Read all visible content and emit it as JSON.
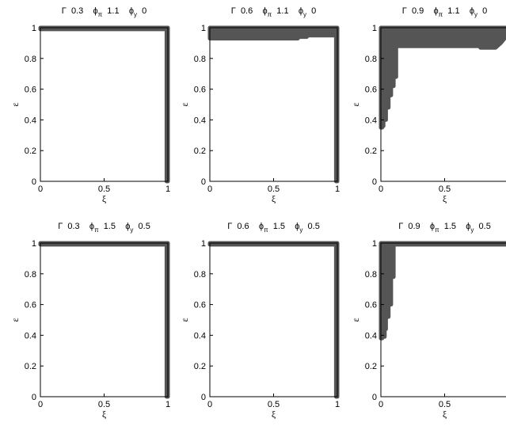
{
  "chart_data": [
    {
      "type": "area",
      "title": "Γ  0.3   ϕπ  1.1   ϕy  0",
      "xlabel": "ξ",
      "ylabel": "ε",
      "xlim": [
        0,
        1
      ],
      "ylim": [
        0,
        1
      ],
      "xticks": [
        "0",
        "0.5",
        "1"
      ],
      "yticks": [
        "0",
        "0.2",
        "0.4",
        "0.6",
        "0.8",
        "1"
      ],
      "grid": false,
      "params": {
        "Gamma": "0.3",
        "phi_pi": "1.1",
        "phi_y": "0"
      },
      "region_color": "#555555",
      "region": [
        [
          0,
          1
        ],
        [
          1,
          1
        ],
        [
          1,
          0
        ],
        [
          0.99,
          0
        ],
        [
          0.99,
          0.99
        ],
        [
          0,
          0.99
        ]
      ]
    },
    {
      "type": "area",
      "title": "Γ  0.6   ϕπ  1.1   ϕy  0",
      "xlabel": "ξ",
      "ylabel": "ε",
      "xlim": [
        0,
        1
      ],
      "ylim": [
        0,
        1
      ],
      "xticks": [
        "0",
        "0.5",
        "1"
      ],
      "yticks": [
        "0",
        "0.2",
        "0.4",
        "0.6",
        "0.8",
        "1"
      ],
      "grid": false,
      "params": {
        "Gamma": "0.6",
        "phi_pi": "1.1",
        "phi_y": "0"
      },
      "region_color": "#555555",
      "region": [
        [
          0,
          1
        ],
        [
          1,
          1
        ],
        [
          1,
          0
        ],
        [
          0.99,
          0
        ],
        [
          0.99,
          0.95
        ],
        [
          0.76,
          0.95
        ],
        [
          0.76,
          0.94
        ],
        [
          0.69,
          0.94
        ],
        [
          0.69,
          0.93
        ],
        [
          0,
          0.93
        ]
      ]
    },
    {
      "type": "area",
      "title": "Γ  0.9   ϕπ  1.1   ϕy  0",
      "xlabel": "ξ",
      "ylabel": "ε",
      "xlim": [
        0,
        1
      ],
      "ylim": [
        0,
        1
      ],
      "xticks": [
        "0",
        "0.5"
      ],
      "yticks": [
        "0",
        "0.2",
        "0.4",
        "0.6",
        "0.8",
        "1"
      ],
      "grid": false,
      "params": {
        "Gamma": "0.9",
        "phi_pi": "1.1",
        "phi_y": "0"
      },
      "region_color": "#555555",
      "region": [
        [
          0,
          1
        ],
        [
          1,
          1
        ],
        [
          1,
          0.96
        ],
        [
          0.94,
          0.9
        ],
        [
          0.9,
          0.87
        ],
        [
          0.78,
          0.87
        ],
        [
          0.78,
          0.88
        ],
        [
          0.12,
          0.88
        ],
        [
          0.12,
          0.68
        ],
        [
          0.1,
          0.68
        ],
        [
          0.1,
          0.62
        ],
        [
          0.08,
          0.62
        ],
        [
          0.08,
          0.56
        ],
        [
          0.06,
          0.56
        ],
        [
          0.06,
          0.48
        ],
        [
          0.04,
          0.48
        ],
        [
          0.04,
          0.4
        ],
        [
          0.02,
          0.4
        ],
        [
          0.02,
          0.36
        ],
        [
          0.01,
          0.36
        ],
        [
          0.01,
          0.35
        ],
        [
          0,
          0.35
        ]
      ]
    },
    {
      "type": "area",
      "title": "Γ  0.3   ϕπ  1.5   ϕy  0.5",
      "xlabel": "ξ",
      "ylabel": "ε",
      "xlim": [
        0,
        1
      ],
      "ylim": [
        0,
        1
      ],
      "xticks": [
        "0",
        "0.5",
        "1"
      ],
      "yticks": [
        "0",
        "0.2",
        "0.4",
        "0.6",
        "0.8",
        "1"
      ],
      "grid": false,
      "params": {
        "Gamma": "0.3",
        "phi_pi": "1.5",
        "phi_y": "0.5"
      },
      "region_color": "#555555",
      "region": [
        [
          0,
          1
        ],
        [
          1,
          1
        ],
        [
          1,
          0
        ],
        [
          0.99,
          0
        ],
        [
          0.99,
          0.99
        ],
        [
          0,
          0.99
        ]
      ]
    },
    {
      "type": "area",
      "title": "Γ  0.6   ϕπ  1.5   ϕy  0.5",
      "xlabel": "ξ",
      "ylabel": "ε",
      "xlim": [
        0,
        1
      ],
      "ylim": [
        0,
        1
      ],
      "xticks": [
        "0",
        "0.5",
        "1"
      ],
      "yticks": [
        "0",
        "0.2",
        "0.4",
        "0.6",
        "0.8",
        "1"
      ],
      "grid": false,
      "params": {
        "Gamma": "0.6",
        "phi_pi": "1.5",
        "phi_y": "0.5"
      },
      "region_color": "#555555",
      "region": [
        [
          0,
          1
        ],
        [
          1,
          1
        ],
        [
          1,
          0
        ],
        [
          0.99,
          0
        ],
        [
          0.99,
          0.99
        ],
        [
          0,
          0.99
        ]
      ]
    },
    {
      "type": "area",
      "title": "Γ  0.9   ϕπ  1.5   ϕy  0.5",
      "xlabel": "ξ",
      "ylabel": "ε",
      "xlim": [
        0,
        1
      ],
      "ylim": [
        0,
        1
      ],
      "xticks": [
        "0",
        "0.5"
      ],
      "yticks": [
        "0",
        "0.2",
        "0.4",
        "0.6",
        "0.8",
        "1"
      ],
      "grid": false,
      "params": {
        "Gamma": "0.9",
        "phi_pi": "1.5",
        "phi_y": "0.5"
      },
      "region_color": "#555555",
      "region": [
        [
          0,
          1
        ],
        [
          1,
          1
        ],
        [
          1,
          0.99
        ],
        [
          0.1,
          0.99
        ],
        [
          0.1,
          0.78
        ],
        [
          0.08,
          0.78
        ],
        [
          0.08,
          0.6
        ],
        [
          0.06,
          0.6
        ],
        [
          0.06,
          0.52
        ],
        [
          0.04,
          0.52
        ],
        [
          0.04,
          0.44
        ],
        [
          0.03,
          0.44
        ],
        [
          0.03,
          0.39
        ],
        [
          0.01,
          0.39
        ],
        [
          0.01,
          0.38
        ],
        [
          0,
          0.38
        ]
      ]
    }
  ]
}
